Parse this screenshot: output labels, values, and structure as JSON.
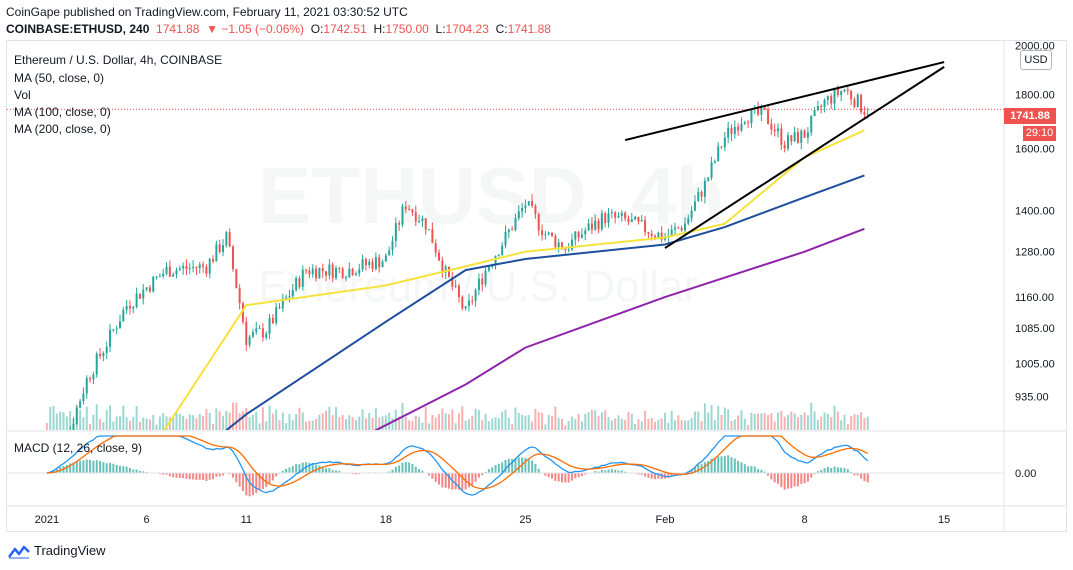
{
  "header": {
    "publisher_line": "CoinGape published on TradingView.com, February 11, 2021 03:30:52 UTC",
    "symbol": "COINBASE:ETHUSD, 240",
    "last": "1741.88",
    "change": "▼ −1.05 (−0.06%)",
    "o_label": "O:",
    "o_value": "1742.51",
    "h_label": "H:",
    "h_value": "1750.00",
    "l_label": "L:",
    "l_value": "1704.23",
    "c_label": "C:",
    "c_value": "1741.88"
  },
  "legend": {
    "title": "Ethereum / U.S. Dollar, 4h, COINBASE",
    "ma50": "MA (50, close, 0)",
    "vol": "Vol",
    "ma100": "MA (100, close, 0)",
    "ma200": "MA (200, close, 0)",
    "macd": "MACD (12, 26, close, 9)"
  },
  "watermark": {
    "symbol": "ETHUSD, 4h",
    "name": "Ethereum / U.S. Dollar"
  },
  "price_axis": {
    "currency_button": "USD",
    "price_tag": "1741.88",
    "countdown": "29:10",
    "macd_tick": "0.00"
  },
  "branding": {
    "name": "TradingView"
  },
  "colors": {
    "up": "#26a69a",
    "down": "#ef5350",
    "ma50": "#f5e23b",
    "ma100": "#1f4e9e",
    "ma200": "#8e24aa",
    "macd_line": "#2196f3",
    "signal_line": "#ff6d00",
    "trendline": "#000000"
  },
  "chart_data": {
    "type": "candlestick",
    "scale": "log",
    "x_tick_labels": [
      "2021",
      "6",
      "11",
      "18",
      "25",
      "Feb",
      "8",
      "15"
    ],
    "x_ticks": [
      "2021-01-01",
      "2021-01-06",
      "2021-01-11",
      "2021-01-18",
      "2021-01-25",
      "2021-02-01",
      "2021-02-08",
      "2021-02-15"
    ],
    "x_range": [
      "2020-12-30",
      "2021-02-18"
    ],
    "y_ticks": [
      935,
      1005,
      1085,
      1160,
      1280,
      1400,
      1600,
      1800,
      2000
    ],
    "y_range": [
      870,
      2020
    ],
    "key_prices": [
      {
        "date": "2021-01-01",
        "price": 735
      },
      {
        "date": "2021-01-03",
        "price": 970
      },
      {
        "date": "2021-01-04",
        "price": 1050
      },
      {
        "date": "2021-01-05",
        "price": 1140
      },
      {
        "date": "2021-01-07",
        "price": 1230
      },
      {
        "date": "2021-01-09",
        "price": 1240
      },
      {
        "date": "2021-01-10",
        "price": 1320
      },
      {
        "date": "2021-01-11",
        "price": 1060
      },
      {
        "date": "2021-01-12",
        "price": 1080
      },
      {
        "date": "2021-01-14",
        "price": 1230
      },
      {
        "date": "2021-01-16",
        "price": 1230
      },
      {
        "date": "2021-01-18",
        "price": 1260
      },
      {
        "date": "2021-01-19",
        "price": 1420
      },
      {
        "date": "2021-01-20",
        "price": 1360
      },
      {
        "date": "2021-01-21",
        "price": 1220
      },
      {
        "date": "2021-01-22",
        "price": 1120
      },
      {
        "date": "2021-01-23",
        "price": 1230
      },
      {
        "date": "2021-01-24",
        "price": 1320
      },
      {
        "date": "2021-01-25",
        "price": 1420
      },
      {
        "date": "2021-01-26",
        "price": 1330
      },
      {
        "date": "2021-01-27",
        "price": 1290
      },
      {
        "date": "2021-01-28",
        "price": 1340
      },
      {
        "date": "2021-01-29",
        "price": 1380
      },
      {
        "date": "2021-01-30",
        "price": 1370
      },
      {
        "date": "2021-02-01",
        "price": 1320
      },
      {
        "date": "2021-02-02",
        "price": 1360
      },
      {
        "date": "2021-02-03",
        "price": 1480
      },
      {
        "date": "2021-02-04",
        "price": 1640
      },
      {
        "date": "2021-02-05",
        "price": 1720
      },
      {
        "date": "2021-02-06",
        "price": 1720
      },
      {
        "date": "2021-02-07",
        "price": 1620
      },
      {
        "date": "2021-02-08",
        "price": 1650
      },
      {
        "date": "2021-02-09",
        "price": 1770
      },
      {
        "date": "2021-02-10",
        "price": 1820
      },
      {
        "date": "2021-02-11",
        "price": 1742
      }
    ],
    "moving_averages": [
      {
        "name": "MA (50, close, 0)",
        "start": "2021-01-06",
        "start_price": 820,
        "points": [
          [
            "2021-01-11",
            1140
          ],
          [
            "2021-01-18",
            1190
          ],
          [
            "2021-01-22",
            1240
          ],
          [
            "2021-01-25",
            1280
          ],
          [
            "2021-02-01",
            1320
          ],
          [
            "2021-02-04",
            1360
          ],
          [
            "2021-02-08",
            1570
          ],
          [
            "2021-02-11",
            1665
          ]
        ]
      },
      {
        "name": "MA (100, close, 0)",
        "start": "2021-01-09",
        "start_price": 840,
        "points": [
          [
            "2021-01-11",
            900
          ],
          [
            "2021-01-18",
            1100
          ],
          [
            "2021-01-22",
            1230
          ],
          [
            "2021-01-25",
            1260
          ],
          [
            "2021-02-01",
            1300
          ],
          [
            "2021-02-04",
            1350
          ],
          [
            "2021-02-08",
            1440
          ],
          [
            "2021-02-11",
            1510
          ]
        ]
      },
      {
        "name": "MA (200, close, 0)",
        "start": "2021-01-17",
        "start_price": 860,
        "points": [
          [
            "2021-01-22",
            960
          ],
          [
            "2021-01-25",
            1040
          ],
          [
            "2021-02-01",
            1160
          ],
          [
            "2021-02-08",
            1280
          ],
          [
            "2021-02-11",
            1345
          ]
        ]
      }
    ],
    "trendlines": [
      {
        "from": [
          "2021-01-30",
          1630
        ],
        "to": [
          "2021-02-15",
          1930
        ]
      },
      {
        "from": [
          "2021-02-01",
          1290
        ],
        "to": [
          "2021-02-15",
          1910
        ]
      }
    ],
    "macd_pane": {
      "y_ticks": [
        0.0
      ]
    },
    "last_price": 1741.88
  }
}
